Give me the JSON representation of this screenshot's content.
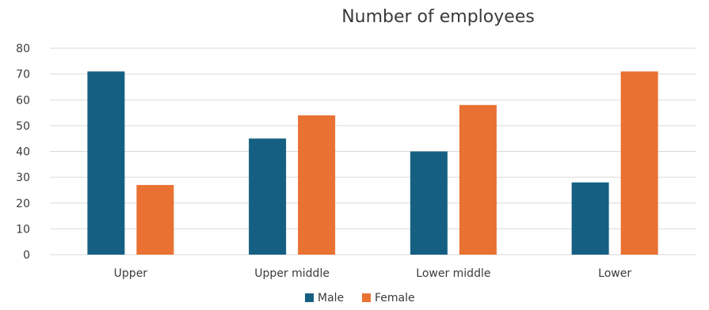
{
  "chart_data": {
    "type": "bar",
    "title": "Number of employees",
    "xlabel": "",
    "ylabel": "",
    "categories": [
      "Upper",
      "Upper middle",
      "Lower middle",
      "Lower"
    ],
    "series": [
      {
        "name": "Male",
        "values": [
          71,
          45,
          40,
          28
        ],
        "color": "#156082"
      },
      {
        "name": "Female",
        "values": [
          27,
          54,
          58,
          71
        ],
        "color": "#E97132"
      }
    ],
    "ylim": [
      0,
      80
    ],
    "yticks": [
      0,
      10,
      20,
      30,
      40,
      50,
      60,
      70,
      80
    ],
    "grid": true,
    "legend_position": "bottom"
  }
}
